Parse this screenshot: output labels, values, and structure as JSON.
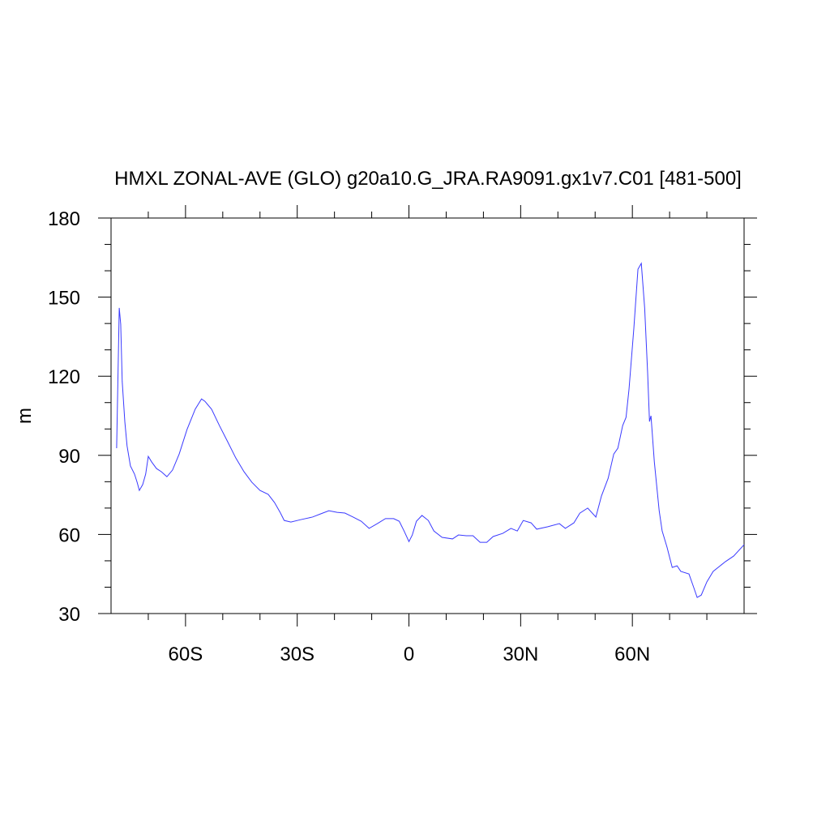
{
  "chart_data": {
    "type": "line",
    "title": "HMXL ZONAL-AVE (GLO) g20a10.G_JRA.RA9091.gx1v7.C01 [481-500]",
    "y_label": "m",
    "x": [
      -78.5,
      -77.8,
      -77.4,
      -77,
      -76.3,
      -75.7,
      -74.8,
      -73.7,
      -73,
      -72.4,
      -71.5,
      -70.7,
      -70,
      -69.1,
      -67.8,
      -66.5,
      -65,
      -63.5,
      -61.7,
      -59.6,
      -57.4,
      -55.7,
      -54.8,
      -53,
      -50.9,
      -48.7,
      -46.5,
      -44.3,
      -42.2,
      -40,
      -37.8,
      -36.1,
      -34.6,
      -33.5,
      -31.7,
      -29.1,
      -25.9,
      -23.7,
      -21.5,
      -19.3,
      -17.2,
      -15,
      -12.8,
      -10.7,
      -8.5,
      -6.3,
      -4.1,
      -2.6,
      -1.3,
      0,
      0.9,
      2,
      3.5,
      5.2,
      6.7,
      8.9,
      11.7,
      13.3,
      15.4,
      17.2,
      19.1,
      20.9,
      22.6,
      25.2,
      27.4,
      29.1,
      30.7,
      32.8,
      34.3,
      37.2,
      40.4,
      42,
      44.3,
      45.9,
      48,
      50.2,
      51.7,
      53.5,
      55,
      56.1,
      57.4,
      58.3,
      59.1,
      60.4,
      61.5,
      62.4,
      63.3,
      64.1,
      64.6,
      65,
      65.9,
      67.2,
      68,
      69.3,
      70.7,
      72,
      73,
      75.2,
      76.5,
      77.4,
      78.5,
      80,
      81.7,
      85,
      87.2,
      90
    ],
    "series": [
      {
        "name": "HMXL",
        "color": "#3a3aff",
        "values": [
          92.7,
          145.9,
          139.7,
          118,
          102.8,
          93.6,
          86,
          82.9,
          79.8,
          76.7,
          78.9,
          82.9,
          89.6,
          87.5,
          85,
          83.8,
          81.9,
          84.4,
          90.5,
          99.8,
          107.5,
          111.4,
          110.5,
          107.5,
          101.3,
          95.2,
          89,
          83.8,
          79.8,
          76.7,
          75.2,
          72.1,
          68.4,
          65.3,
          64.7,
          65.6,
          66.6,
          67.8,
          69,
          68.4,
          68.1,
          66.6,
          65,
          62.3,
          64.1,
          66,
          66,
          65,
          61.3,
          57.3,
          59.8,
          65,
          67.2,
          65.3,
          61.3,
          58.9,
          58.3,
          59.8,
          59.5,
          59.5,
          57,
          57,
          59.2,
          60.4,
          62.3,
          61.3,
          65.3,
          64.4,
          62,
          62.9,
          64.1,
          62.3,
          64.4,
          68.1,
          70,
          66.6,
          74.6,
          81.3,
          90.5,
          92.7,
          101.3,
          104.4,
          115.1,
          138.2,
          160.6,
          162.8,
          145.9,
          121.3,
          102.8,
          105,
          87.5,
          69,
          61.3,
          55.2,
          47.5,
          48.1,
          46,
          45,
          39.8,
          36.1,
          37,
          42,
          46,
          49.7,
          51.8,
          56.1
        ]
      }
    ],
    "xlim": [
      -80,
      90
    ],
    "xticks": [
      {
        "value": -60,
        "label": "60S"
      },
      {
        "value": -30,
        "label": "30S"
      },
      0,
      {
        "value": 30,
        "label": "30N"
      },
      {
        "value": 60,
        "label": "60N"
      }
    ],
    "xminorticks": [
      -70,
      -50,
      -40,
      -20,
      -10,
      10,
      20,
      40,
      50,
      70,
      80
    ],
    "ylim": [
      30,
      180
    ],
    "yticks": [
      30,
      60,
      90,
      120,
      150,
      180
    ],
    "yminorticks": [
      40,
      50,
      70,
      80,
      100,
      110,
      130,
      140,
      160,
      170
    ]
  }
}
